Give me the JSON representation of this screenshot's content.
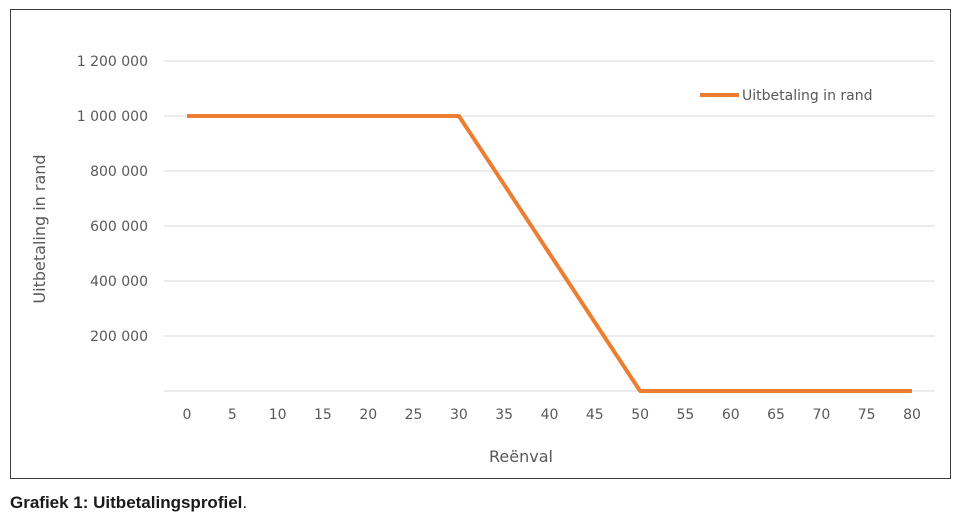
{
  "chart_data": {
    "type": "line",
    "xlabel": "Reënval",
    "ylabel": "Uitbetaling in rand",
    "x_ticks": [
      "0",
      "5",
      "10",
      "15",
      "20",
      "25",
      "30",
      "35",
      "40",
      "45",
      "50",
      "55",
      "60",
      "65",
      "70",
      "75",
      "80"
    ],
    "y_ticks": [
      {
        "value": 200000,
        "label": "200 000"
      },
      {
        "value": 400000,
        "label": "400 000"
      },
      {
        "value": 600000,
        "label": "600 000"
      },
      {
        "value": 800000,
        "label": "800 000"
      },
      {
        "value": 1000000,
        "label": "1 000 000"
      },
      {
        "value": 1200000,
        "label": "1 200 000"
      }
    ],
    "xlim": [
      0,
      80
    ],
    "ylim": [
      0,
      1200000
    ],
    "grid": true,
    "legend_position": "top-right",
    "series": [
      {
        "name": "Uitbetaling in rand",
        "color": "#ED7D31",
        "x": [
          0,
          30,
          50,
          80
        ],
        "y": [
          1000000,
          1000000,
          0,
          0
        ]
      }
    ]
  },
  "caption": {
    "bold_text": "Grafiek 1: Uitbetalingsprofiel",
    "suffix": "."
  }
}
